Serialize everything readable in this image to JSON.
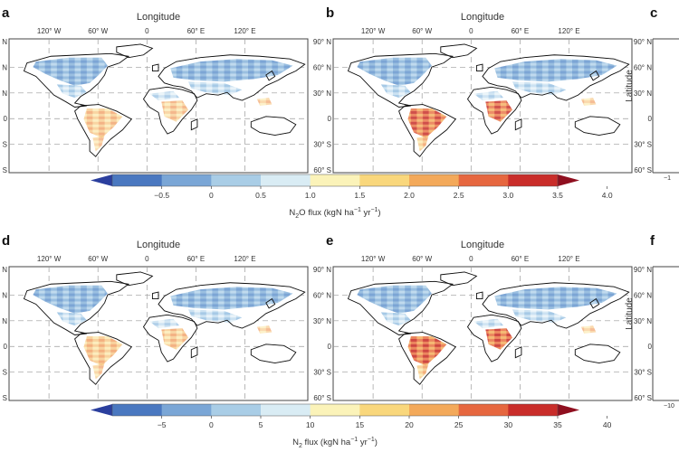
{
  "axis_titles": {
    "longitude": "Longitude",
    "latitude": "Latitude"
  },
  "lon_ticks": [
    "120° W",
    "60° W",
    "0",
    "60° E",
    "120° E"
  ],
  "lat_ticks": [
    "90° N",
    "60° N",
    "30° N",
    "0",
    "30° S",
    "60° S"
  ],
  "panels": [
    {
      "letter": "a",
      "row": 0,
      "col": 0,
      "intensity": 0.35
    },
    {
      "letter": "b",
      "row": 0,
      "col": 1,
      "intensity": 0.75
    },
    {
      "letter": "c",
      "row": 0,
      "col": 2
    },
    {
      "letter": "d",
      "row": 1,
      "col": 0,
      "intensity": 0.45
    },
    {
      "letter": "e",
      "row": 1,
      "col": 1,
      "intensity": 0.85
    },
    {
      "letter": "f",
      "row": 1,
      "col": 2
    }
  ],
  "partial_panel_ticks": {
    "top": "−1",
    "bottom": "−10"
  },
  "colorbars": [
    {
      "id": "n2o",
      "ticks": [
        "−0.5",
        "0",
        "0.5",
        "1.0",
        "1.5",
        "2.0",
        "2.5",
        "3.0",
        "3.5",
        "4.0"
      ],
      "label_parts": [
        "N",
        "2",
        "O flux (kgN ha",
        "−1",
        " yr",
        "−1",
        ")"
      ]
    },
    {
      "id": "n2",
      "ticks": [
        "−5",
        "0",
        "5",
        "10",
        "15",
        "20",
        "25",
        "30",
        "35",
        "40"
      ],
      "label_parts": [
        "N",
        "2",
        " flux (kgN ha",
        "−1",
        " yr",
        "−1",
        ")"
      ]
    }
  ],
  "colors": {
    "scale": [
      "#2b3f9e",
      "#4a78c0",
      "#7aa6d6",
      "#a9cde6",
      "#d9ecf4",
      "#fbf3b9",
      "#f9d77c",
      "#f3a95a",
      "#e6673f",
      "#c92d2a",
      "#8f0f1f"
    ],
    "land_fill": "#ffffff",
    "coast": "#111111",
    "grid": "#9a9a9a"
  }
}
